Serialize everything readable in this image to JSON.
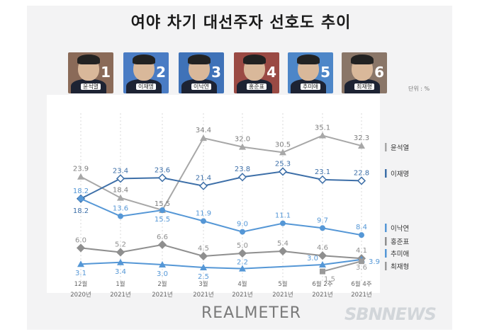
{
  "title": "여야 차기 대선주자 선호도 추이",
  "unit_label": "단위 : %",
  "brand": "REALMETER",
  "watermark": "SBNNEWS",
  "candidates": [
    {
      "name": "윤석열",
      "num": "1",
      "bg": "#8a6a58"
    },
    {
      "name": "이재명",
      "num": "2",
      "bg": "#4a7cc4"
    },
    {
      "name": "이낙연",
      "num": "3",
      "bg": "#3f72b8"
    },
    {
      "name": "홍준표",
      "num": "4",
      "bg": "#9a4a44"
    },
    {
      "name": "추미애",
      "num": "5",
      "bg": "#4d86c8"
    },
    {
      "name": "최재형",
      "num": "6",
      "bg": "#8a7668"
    }
  ],
  "chart_data": {
    "type": "line",
    "title": "여야 차기 대선주자 선호도 추이",
    "categories": [
      {
        "top": "12월",
        "bottom": "2020년"
      },
      {
        "top": "1월",
        "bottom": "2021년"
      },
      {
        "top": "2월",
        "bottom": "2021년"
      },
      {
        "top": "3월",
        "bottom": "2021년"
      },
      {
        "top": "4월",
        "bottom": "2021년"
      },
      {
        "top": "5월",
        "bottom": "2021년"
      },
      {
        "top": "6월 2주",
        "bottom": "2021년"
      },
      {
        "top": "6월 4주",
        "bottom": "2021년"
      }
    ],
    "ylim": [
      0,
      40
    ],
    "series": [
      {
        "name": "윤석열",
        "color": "#a7a7a7",
        "marker": "triangle",
        "values": [
          23.9,
          18.4,
          15.5,
          34.4,
          32.0,
          30.5,
          35.1,
          32.3
        ],
        "labels": [
          "23.9",
          "18.4",
          "15.5",
          "34.4",
          "32.0",
          "30.5",
          "35.1",
          "32.3"
        ]
      },
      {
        "name": "이재명",
        "color": "#3d6fa8",
        "marker": "diamond",
        "values": [
          18.2,
          23.4,
          23.6,
          21.4,
          23.8,
          25.3,
          23.1,
          22.8
        ],
        "labels": [
          "18.2",
          "23.4",
          "23.6",
          "21.4",
          "23.8",
          "25.3",
          "23.1",
          "22.8"
        ]
      },
      {
        "name": "이낙연",
        "color": "#5597d6",
        "marker": "circle",
        "values": [
          18.2,
          13.6,
          15.5,
          11.9,
          9.0,
          11.1,
          9.7,
          8.4
        ],
        "labels": [
          "18.2",
          "13.6",
          "15.5",
          "11.9",
          "9.0",
          "11.1",
          "9.7",
          "8.4"
        ]
      },
      {
        "name": "홍준표",
        "color": "#8f8f8f",
        "marker": "diamond",
        "values": [
          6.0,
          5.2,
          6.6,
          4.5,
          5.0,
          5.4,
          4.6,
          4.1
        ],
        "labels": [
          "6.0",
          "5.2",
          "6.6",
          "4.5",
          "5.0",
          "5.4",
          "4.6",
          "4.1"
        ]
      },
      {
        "name": "추미애",
        "color": "#5597d6",
        "marker": "triangle",
        "values": [
          3.1,
          3.4,
          3.0,
          2.5,
          2.2,
          null,
          3.0,
          3.9
        ],
        "labels": [
          "3.1",
          "3.4",
          "3.0",
          "2.5",
          "2.2",
          "",
          "3.0",
          "3.9"
        ]
      },
      {
        "name": "최재형",
        "color": "#9a9a9a",
        "marker": "square",
        "values": [
          null,
          null,
          null,
          null,
          null,
          null,
          1.5,
          3.6
        ],
        "labels": [
          "",
          "",
          "",
          "",
          "",
          "",
          "1.5",
          "3.6"
        ]
      }
    ]
  }
}
